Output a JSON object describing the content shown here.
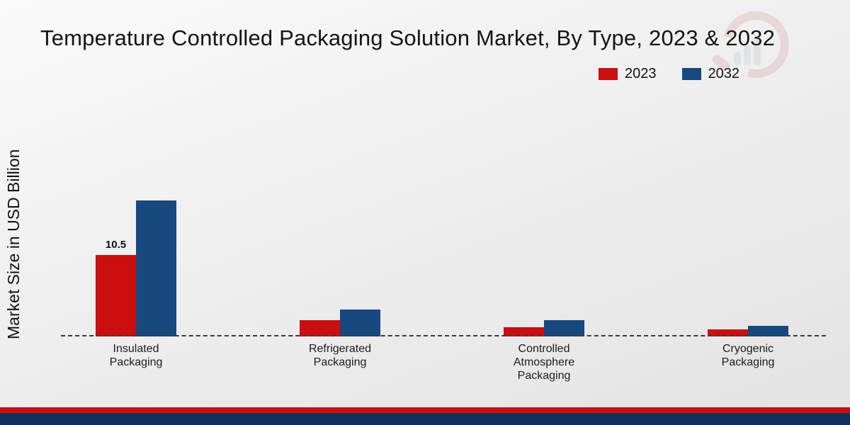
{
  "chart_data": {
    "type": "bar",
    "title": "Temperature Controlled Packaging Solution Market, By Type, 2023 & 2032",
    "ylabel": "Market Size in USD Billion",
    "xlabel": "",
    "categories": [
      "Insulated Packaging",
      "Refrigerated Packaging",
      "Controlled Atmosphere Packaging",
      "Cryogenic Packaging"
    ],
    "series": [
      {
        "name": "2023",
        "color": "#c90f0f",
        "values": [
          10.5,
          2.1,
          1.2,
          0.9
        ]
      },
      {
        "name": "2032",
        "color": "#17497f",
        "values": [
          17.5,
          3.5,
          2.1,
          1.4
        ]
      }
    ],
    "data_labels": [
      {
        "series": "2023",
        "category": "Insulated Packaging",
        "text": "10.5"
      }
    ],
    "ylim": [
      0,
      20
    ],
    "grid": false,
    "baseline_style": "dashed",
    "legend_position": "top-right"
  },
  "legend": {
    "items": [
      {
        "label": "2023",
        "color": "#c90f0f"
      },
      {
        "label": "2032",
        "color": "#17497f"
      }
    ]
  },
  "footer": {
    "red_strip_color": "#c90f0f",
    "blue_strip_color": "#12305e"
  }
}
